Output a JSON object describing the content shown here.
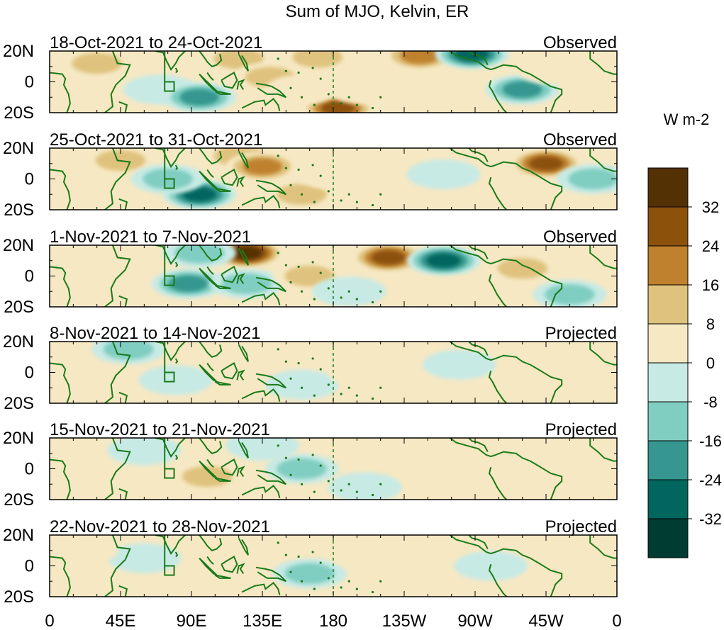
{
  "chart_data": {
    "type": "heatmap",
    "title": "Sum of MJO, Kelvin, ER",
    "units": "W m-2",
    "x_ticks": [
      "0",
      "45E",
      "90E",
      "135E",
      "180",
      "135W",
      "90W",
      "45W",
      "0"
    ],
    "y_ticks": [
      "20N",
      "0",
      "20S"
    ],
    "colorbar": {
      "labels": [
        "32",
        "24",
        "16",
        "8",
        "0",
        "-8",
        "-16",
        "-24",
        "-32"
      ],
      "levels": [
        40,
        32,
        24,
        16,
        8,
        0,
        -8,
        -16,
        -24,
        -32,
        -40
      ],
      "colors": [
        "#543005",
        "#8c510a",
        "#bf812d",
        "#dfc27d",
        "#f6e8c3",
        "#c7eae5",
        "#80cdc1",
        "#35978f",
        "#01665e",
        "#003c30"
      ]
    },
    "panels": [
      {
        "dates": "18-Oct-2021 to 24-Oct-2021",
        "status": "Observed",
        "features": [
          {
            "lon": 30,
            "lat": 12,
            "v": 18
          },
          {
            "lon": 120,
            "lat": 15,
            "v": 14
          },
          {
            "lon": 140,
            "lat": 3,
            "v": 14
          },
          {
            "lon": 170,
            "lat": 16,
            "v": 12
          },
          {
            "lon": 183,
            "lat": -17,
            "v": 34
          },
          {
            "lon": 235,
            "lat": 17,
            "v": 20
          },
          {
            "lon": 268,
            "lat": 18,
            "v": -30
          },
          {
            "lon": 300,
            "lat": -5,
            "v": -22
          },
          {
            "lon": 70,
            "lat": -5,
            "v": -10
          },
          {
            "lon": 95,
            "lat": -10,
            "v": -20
          },
          {
            "lon": 160,
            "lat": -5,
            "v": 8
          },
          {
            "lon": 200,
            "lat": -5,
            "v": 6
          },
          {
            "lon": 320,
            "lat": 8,
            "v": 10
          }
        ]
      },
      {
        "dates": "25-Oct-2021 to 31-Oct-2021",
        "status": "Observed",
        "features": [
          {
            "lon": 45,
            "lat": 12,
            "v": 16
          },
          {
            "lon": 120,
            "lat": 15,
            "v": 16
          },
          {
            "lon": 135,
            "lat": 8,
            "v": 22
          },
          {
            "lon": 95,
            "lat": -10,
            "v": -30
          },
          {
            "lon": 75,
            "lat": 0,
            "v": -16
          },
          {
            "lon": 160,
            "lat": -10,
            "v": 12
          },
          {
            "lon": 210,
            "lat": 12,
            "v": 10
          },
          {
            "lon": 250,
            "lat": 3,
            "v": -10
          },
          {
            "lon": 315,
            "lat": 10,
            "v": 28
          },
          {
            "lon": 345,
            "lat": 0,
            "v": -18
          },
          {
            "lon": 180,
            "lat": 3,
            "v": 4
          }
        ]
      },
      {
        "dates": "1-Nov-2021 to 7-Nov-2021",
        "status": "Observed",
        "features": [
          {
            "lon": 125,
            "lat": 15,
            "v": 36
          },
          {
            "lon": 88,
            "lat": -5,
            "v": -22
          },
          {
            "lon": 125,
            "lat": -5,
            "v": -16
          },
          {
            "lon": 95,
            "lat": 15,
            "v": -18
          },
          {
            "lon": 165,
            "lat": 0,
            "v": 14
          },
          {
            "lon": 215,
            "lat": 12,
            "v": 30
          },
          {
            "lon": 250,
            "lat": 10,
            "v": -30
          },
          {
            "lon": 300,
            "lat": 5,
            "v": 12
          },
          {
            "lon": 40,
            "lat": 5,
            "v": 6
          },
          {
            "lon": 190,
            "lat": -10,
            "v": -6
          },
          {
            "lon": 330,
            "lat": -12,
            "v": -12
          }
        ]
      },
      {
        "dates": "8-Nov-2021 to 14-Nov-2021",
        "status": "Projected",
        "features": [
          {
            "lon": 50,
            "lat": 15,
            "v": -14
          },
          {
            "lon": 80,
            "lat": -5,
            "v": -8
          },
          {
            "lon": 120,
            "lat": 5,
            "v": 6
          },
          {
            "lon": 160,
            "lat": -8,
            "v": -6
          },
          {
            "lon": 200,
            "lat": 0,
            "v": 5
          },
          {
            "lon": 260,
            "lat": 5,
            "v": -6
          },
          {
            "lon": 310,
            "lat": -5,
            "v": 5
          },
          {
            "lon": 30,
            "lat": -8,
            "v": 5
          }
        ]
      },
      {
        "dates": "15-Nov-2021 to 21-Nov-2021",
        "status": "Projected",
        "features": [
          {
            "lon": 100,
            "lat": -5,
            "v": 12
          },
          {
            "lon": 60,
            "lat": 12,
            "v": -10
          },
          {
            "lon": 160,
            "lat": 0,
            "v": -12
          },
          {
            "lon": 135,
            "lat": 15,
            "v": -6
          },
          {
            "lon": 240,
            "lat": 8,
            "v": 10
          },
          {
            "lon": 290,
            "lat": -3,
            "v": 8
          },
          {
            "lon": 40,
            "lat": -10,
            "v": 6
          },
          {
            "lon": 200,
            "lat": -12,
            "v": -5
          }
        ]
      },
      {
        "dates": "22-Nov-2021 to 28-Nov-2021",
        "status": "Projected",
        "features": [
          {
            "lon": 165,
            "lat": -5,
            "v": -14
          },
          {
            "lon": 110,
            "lat": -10,
            "v": 8
          },
          {
            "lon": 60,
            "lat": 5,
            "v": -6
          },
          {
            "lon": 200,
            "lat": 8,
            "v": 4
          },
          {
            "lon": 280,
            "lat": 0,
            "v": -6
          },
          {
            "lon": 320,
            "lat": -12,
            "v": 8
          },
          {
            "lon": 20,
            "lat": 10,
            "v": 6
          }
        ]
      }
    ]
  }
}
